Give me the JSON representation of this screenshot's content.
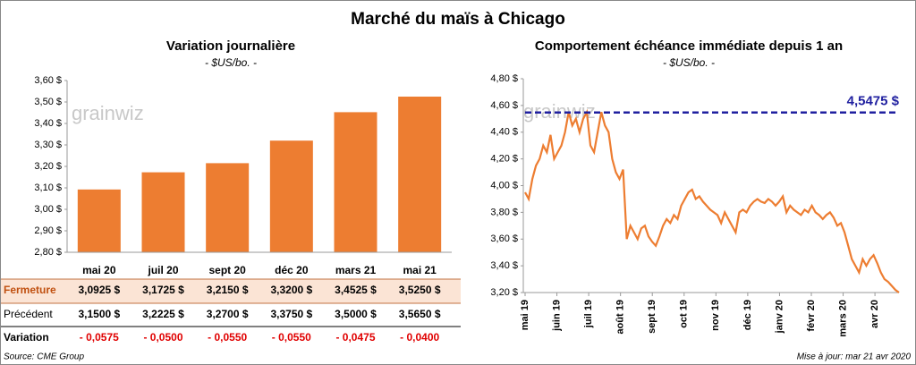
{
  "title": "Marché du maïs à Chicago",
  "watermark": "grainwiz",
  "charts": [
    {
      "type": "bar",
      "title": "Variation journalière",
      "subtitle": "- $US/bo. -",
      "categories": [
        "mai 20",
        "juil 20",
        "sept 20",
        "déc 20",
        "mars 21",
        "mai 21"
      ],
      "values": [
        3.0925,
        3.1725,
        3.215,
        3.32,
        3.4525,
        3.525
      ],
      "color": "#ed7d31",
      "ylim": [
        2.8,
        3.6
      ],
      "yticks": [
        {
          "value": 2.8,
          "label": "2,80 $"
        },
        {
          "value": 2.9,
          "label": "2,90 $"
        },
        {
          "value": 3.0,
          "label": "3,00 $"
        },
        {
          "value": 3.1,
          "label": "3,10 $"
        },
        {
          "value": 3.2,
          "label": "3,20 $"
        },
        {
          "value": 3.3,
          "label": "3,30 $"
        },
        {
          "value": 3.4,
          "label": "3,40 $"
        },
        {
          "value": 3.5,
          "label": "3,50 $"
        },
        {
          "value": 3.6,
          "label": "3,60 $"
        }
      ]
    },
    {
      "type": "line",
      "title": "Comportement échéance immédiate depuis 1 an",
      "subtitle": "- $US/bo. -",
      "month_labels": [
        "mai 19",
        "juin 19",
        "juil 19",
        "août 19",
        "sept 19",
        "oct 19",
        "nov 19",
        "déc 19",
        "janv 20",
        "févr 20",
        "mars 20",
        "avr 20"
      ],
      "values": [
        3.95,
        3.9,
        4.05,
        4.15,
        4.2,
        4.3,
        4.25,
        4.38,
        4.2,
        4.25,
        4.3,
        4.4,
        4.55,
        4.45,
        4.5,
        4.4,
        4.5,
        4.55,
        4.3,
        4.25,
        4.4,
        4.55,
        4.45,
        4.4,
        4.2,
        4.1,
        4.05,
        4.12,
        3.6,
        3.7,
        3.65,
        3.6,
        3.68,
        3.7,
        3.62,
        3.58,
        3.55,
        3.62,
        3.7,
        3.75,
        3.72,
        3.78,
        3.75,
        3.85,
        3.9,
        3.95,
        3.97,
        3.9,
        3.92,
        3.88,
        3.85,
        3.82,
        3.8,
        3.78,
        3.72,
        3.8,
        3.75,
        3.7,
        3.65,
        3.8,
        3.82,
        3.8,
        3.85,
        3.88,
        3.9,
        3.88,
        3.87,
        3.9,
        3.88,
        3.85,
        3.88,
        3.92,
        3.8,
        3.85,
        3.82,
        3.8,
        3.78,
        3.82,
        3.8,
        3.85,
        3.8,
        3.78,
        3.75,
        3.78,
        3.8,
        3.76,
        3.7,
        3.72,
        3.65,
        3.55,
        3.45,
        3.4,
        3.35,
        3.45,
        3.4,
        3.45,
        3.48,
        3.42,
        3.35,
        3.3,
        3.28,
        3.25,
        3.22,
        3.2
      ],
      "color": "#ed7d31",
      "reference": {
        "value": 4.5475,
        "label": "4,5475 $",
        "color": "#2020a0"
      },
      "ylim": [
        3.2,
        4.8
      ],
      "yticks": [
        {
          "value": 3.2,
          "label": "3,20 $"
        },
        {
          "value": 3.4,
          "label": "3,40 $"
        },
        {
          "value": 3.6,
          "label": "3,60 $"
        },
        {
          "value": 3.8,
          "label": "3,80 $"
        },
        {
          "value": 4.0,
          "label": "4,00 $"
        },
        {
          "value": 4.2,
          "label": "4,20 $"
        },
        {
          "value": 4.4,
          "label": "4,40 $"
        },
        {
          "value": 4.6,
          "label": "4,60 $"
        },
        {
          "value": 4.8,
          "label": "4,80 $"
        }
      ]
    }
  ],
  "table": {
    "rows": [
      [
        "Fermeture",
        "3,0925  $",
        "3,1725  $",
        "3,2150  $",
        "3,3200  $",
        "3,4525  $",
        "3,5250  $"
      ],
      [
        "Précédent",
        "3,1500  $",
        "3,2225  $",
        "3,2700  $",
        "3,3750  $",
        "3,5000  $",
        "3,5650  $"
      ],
      [
        "Variation",
        "- 0,0575",
        "- 0,0500",
        "- 0,0550",
        "- 0,0550",
        "- 0,0475",
        "- 0,0400"
      ]
    ]
  },
  "footer": {
    "source": "Source: CME Group",
    "updated": "Mise à jour: mar 21 avr 2020"
  }
}
